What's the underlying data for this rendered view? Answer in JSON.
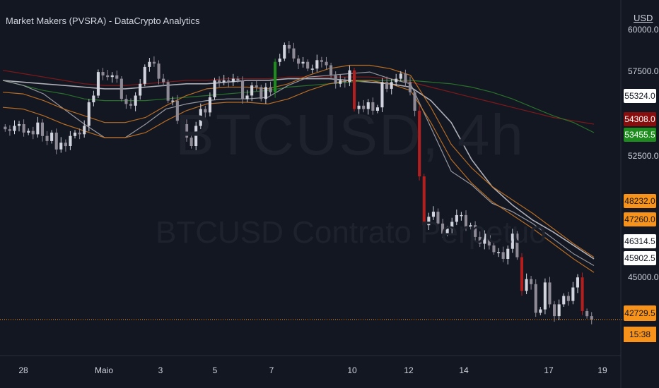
{
  "header": {
    "title": "Market Makers (PVSRA) - DataCrypto Analytics"
  },
  "watermark": {
    "symbol": "BTCUSD, 4h",
    "description": "BTCUSD Contrato Perpetuo"
  },
  "price_axis": {
    "currency": "USD",
    "ticks": [
      "60000.0",
      "57500.0",
      "52500.0",
      "45000.0"
    ]
  },
  "price_tags": [
    {
      "label": "55324.0",
      "bg": "#ffffff",
      "fg": "#131722"
    },
    {
      "label": "54308.0",
      "bg": "#880e0e",
      "fg": "#ffffff"
    },
    {
      "label": "53455.5",
      "bg": "#1e8b1e",
      "fg": "#ffffff"
    },
    {
      "label": "48232.0",
      "bg": "#f7931a",
      "fg": "#131722"
    },
    {
      "label": "47260.0",
      "bg": "#f7931a",
      "fg": "#131722"
    },
    {
      "label": "46314.5",
      "bg": "#ffffff",
      "fg": "#131722"
    },
    {
      "label": "45902.5",
      "bg": "#ffffff",
      "fg": "#131722"
    },
    {
      "label": "42729.5",
      "bg": "#f7931a",
      "fg": "#131722"
    }
  ],
  "countdown": "15:38",
  "time_axis": [
    "28",
    "Maio",
    "3",
    "5",
    "7",
    "10",
    "12",
    "14",
    "17",
    "19"
  ],
  "colors": {
    "background": "#131722",
    "last_price_line": "#f7931a"
  },
  "chart_data": {
    "type": "candlestick",
    "title": "",
    "ylim": [
      42000,
      60500
    ],
    "close": [
      54000,
      53900,
      54200,
      54300,
      53800,
      53900,
      53700,
      54400,
      53600,
      53300,
      53800,
      52800,
      53200,
      53000,
      53600,
      53800,
      53700,
      54200,
      55600,
      56000,
      57400,
      57200,
      57100,
      57200,
      57000,
      55800,
      55500,
      55400,
      56000,
      56700,
      57700,
      58000,
      57900,
      57000,
      56800,
      55700,
      55700,
      54500,
      54300,
      53500,
      53000,
      54200,
      55200,
      55000,
      55900,
      56900,
      56800,
      56900,
      56800,
      57000,
      56900,
      55800,
      56000,
      56600,
      56500,
      55800,
      56500,
      56200,
      58000,
      58200,
      59000,
      58800,
      58200,
      57900,
      58000,
      57600,
      57600,
      58100,
      58000,
      57800,
      57200,
      56700,
      56900,
      56800,
      57500,
      55200,
      55400,
      55200,
      55600,
      55100,
      55300,
      56800,
      56400,
      56800,
      57000,
      57300,
      56800,
      56200,
      55100,
      51200,
      48300,
      48800,
      49100,
      48400,
      47800,
      48100,
      48500,
      48900,
      48900,
      48200,
      48300,
      47600,
      47200,
      47800,
      47100,
      46700,
      46700,
      46300,
      46900,
      47800,
      46400,
      44400,
      45100,
      44800,
      43100,
      43300,
      44900,
      43600,
      42900,
      43600,
      44100,
      43800,
      44600,
      45200,
      43200,
      42900,
      42700
    ],
    "y_ticks": [
      60000,
      57500,
      52500,
      45000
    ],
    "x_ticks": [
      "28",
      "Maio",
      "3",
      "5",
      "7",
      "10",
      "12",
      "14",
      "17",
      "19"
    ],
    "series": [
      {
        "name": "",
        "color": "#c0c0c8",
        "values": [
          56900,
          56800,
          56700,
          56600,
          56500,
          56400,
          56400,
          56500,
          56600,
          56700,
          56700,
          56800,
          56900,
          56900,
          57000,
          57000,
          57000,
          56900,
          56800,
          56700,
          56500,
          55700,
          54400,
          52200,
          50600,
          49500,
          48600,
          47900,
          47100,
          46300
        ]
      },
      {
        "name": "",
        "color": "#8b1a1a",
        "values": [
          57500,
          57300,
          57100,
          56900,
          56700,
          56600,
          56600,
          56700,
          56800,
          56900,
          56900,
          57000,
          57000,
          57000,
          57100,
          57100,
          57100,
          57100,
          57100,
          57000,
          56800,
          56500,
          56200,
          55900,
          55600,
          55300,
          55000,
          54700,
          54500,
          54300
        ]
      },
      {
        "name": "",
        "color": "#2b7a2b",
        "values": [
          56900,
          56600,
          56300,
          56100,
          55800,
          55700,
          55700,
          55700,
          55800,
          55900,
          56000,
          56100,
          56200,
          56300,
          56500,
          56600,
          56700,
          56800,
          56900,
          56900,
          56900,
          56800,
          56700,
          56500,
          56200,
          55800,
          55300,
          54800,
          54400,
          53800
        ]
      },
      {
        "name": "",
        "color": "#a4a4ac",
        "values": [
          56900,
          56600,
          56100,
          55200,
          54300,
          53500,
          53500,
          54300,
          55200,
          55500,
          55700,
          55800,
          55800,
          55900,
          56600,
          57100,
          57200,
          57300,
          57400,
          57000,
          56700,
          54100,
          51500,
          50700,
          49600,
          49100,
          48400,
          47500,
          46600,
          45900
        ]
      },
      {
        "name": "",
        "color": "#c97524",
        "values": [
          56200,
          56100,
          55700,
          55200,
          54800,
          54400,
          54400,
          54700,
          55400,
          56000,
          56400,
          56500,
          56500,
          56400,
          56700,
          57200,
          57600,
          57800,
          57800,
          57600,
          57200,
          55300,
          53100,
          51700,
          50600,
          49800,
          49000,
          48100,
          47200,
          46400
        ]
      },
      {
        "name": "",
        "color": "#c97524",
        "values": [
          55300,
          55200,
          54800,
          54300,
          53900,
          53500,
          53500,
          53800,
          54500,
          55100,
          55500,
          55600,
          55600,
          55500,
          55800,
          56300,
          56700,
          56900,
          56900,
          56700,
          56300,
          54400,
          52200,
          50800,
          49700,
          48900,
          48100,
          47200,
          46300,
          45500
        ]
      }
    ]
  }
}
